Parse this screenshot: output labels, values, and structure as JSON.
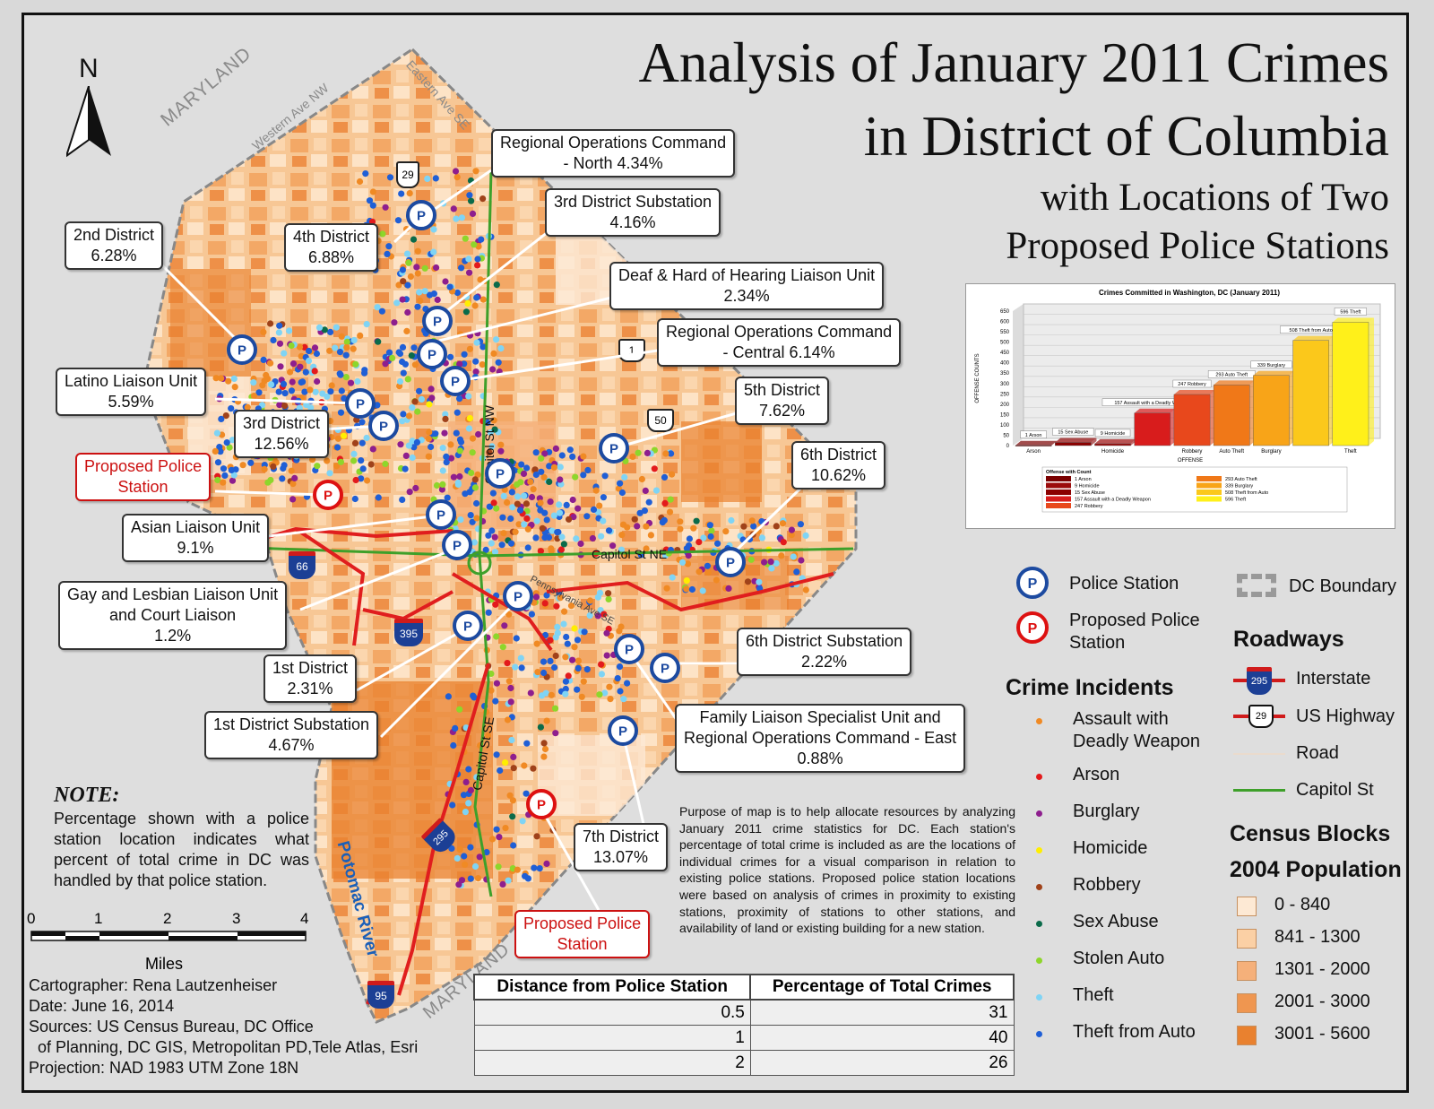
{
  "title": {
    "line1": "Analysis of January 2011 Crimes",
    "line2": "in District of Columbia",
    "line3": "with Locations of Two",
    "line4": "Proposed Police Stations"
  },
  "map_labels": {
    "north": "N",
    "maryland_nw": "MARYLAND",
    "maryland_se": "MARYLAND",
    "western_ave": "Western Ave NW",
    "eastern_ave": "Eastern Ave SE",
    "capitol_st_nw": "Capitol St NW",
    "capitol_st_ne": "Capitol St NE",
    "capitol_st_se": "Capitol St SE",
    "pennsylvania_ave": "Pennsylvania Ave SE",
    "potomac": "Potomac River",
    "shield_29": "29",
    "shield_1": "1",
    "shield_50": "50",
    "shield_66": "66",
    "shield_395": "395",
    "shield_295": "295",
    "shield_95": "95"
  },
  "callouts": [
    {
      "id": "roc-north",
      "line1": "Regional Operations Command",
      "line2": "- North 4.34%"
    },
    {
      "id": "d3-sub",
      "line1": "3rd District Substation",
      "line2": "4.16%"
    },
    {
      "id": "d2",
      "line1": "2nd District",
      "line2": "6.28%"
    },
    {
      "id": "d4",
      "line1": "4th District",
      "line2": "6.88%"
    },
    {
      "id": "deaf",
      "line1": "Deaf & Hard of Hearing Liaison Unit",
      "line2": "2.34%"
    },
    {
      "id": "roc-central",
      "line1": "Regional Operations Command",
      "line2": "- Central 6.14%"
    },
    {
      "id": "latino",
      "line1": "Latino Liaison Unit",
      "line2": "5.59%"
    },
    {
      "id": "d5",
      "line1": "5th District",
      "line2": "7.62%"
    },
    {
      "id": "d3",
      "line1": "3rd District",
      "line2": "12.56%"
    },
    {
      "id": "prop1",
      "line1": "Proposed Police",
      "line2": "Station"
    },
    {
      "id": "d6",
      "line1": "6th District",
      "line2": "10.62%"
    },
    {
      "id": "asian",
      "line1": "Asian Liaison Unit",
      "line2": "9.1%"
    },
    {
      "id": "glbt",
      "line1": "Gay and Lesbian Liaison Unit",
      "line2": "and Court Liaison",
      "line3": "1.2%"
    },
    {
      "id": "d6-sub",
      "line1": "6th District Substation",
      "line2": "2.22%"
    },
    {
      "id": "d1",
      "line1": "1st District",
      "line2": "2.31%"
    },
    {
      "id": "family",
      "line1": "Family Liaison Specialist Unit and",
      "line2": "Regional Operations Command - East",
      "line3": "0.88%"
    },
    {
      "id": "d1-sub",
      "line1": "1st District Substation",
      "line2": "4.67%"
    },
    {
      "id": "d7",
      "line1": "7th District",
      "line2": "13.07%"
    },
    {
      "id": "prop2",
      "line1": "Proposed Police",
      "line2": "Station"
    }
  ],
  "note": {
    "heading": "NOTE:",
    "text": "Percentage shown with a police station location indicates what percent of total crime in DC was handled by that police station."
  },
  "scale": {
    "ticks": [
      "0",
      "1",
      "2",
      "3",
      "4"
    ],
    "unit": "Miles"
  },
  "credits": {
    "cartographer": "Cartographer: Rena Lautzenheiser",
    "date": "Date: June 16, 2014",
    "sources1": "Sources: US Census Bureau, DC Office",
    "sources2": "of Planning, DC GIS, Metropolitan PD,Tele Atlas, Esri",
    "projection": "Projection: NAD 1983 UTM Zone 18N"
  },
  "purpose": "Purpose of map is to help allocate resources by analyzing January 2011 crime statistics for DC. Each station's percentage of total crime is included as are the locations of individual crimes for a visual comparison in relation to existing police stations. Proposed police station locations were based on analysis of crimes in proximity to existing stations, proximity of stations to other stations, and availability of land or existing building for a new station.",
  "distance_table": {
    "headers": [
      "Distance from Police Station",
      "Percentage of Total Crimes"
    ],
    "rows": [
      [
        "0.5",
        "31"
      ],
      [
        "1",
        "40"
      ],
      [
        "2",
        "26"
      ]
    ]
  },
  "legend": {
    "police_station": "Police Station",
    "proposed_line1": "Proposed Police",
    "proposed_line2": "Station",
    "dc_boundary": "DC Boundary",
    "roadways": "Roadways",
    "interstate": "Interstate",
    "us_highway": "US Highway",
    "road": "Road",
    "capitol_st": "Capitol St",
    "crime_heading": "Crime Incidents",
    "crimes": [
      {
        "label": "Assault with",
        "label2": "Deadly Weapon",
        "color": "#f08a24"
      },
      {
        "label": "Arson",
        "color": "#e31a1c"
      },
      {
        "label": "Burglary",
        "color": "#8e1e8e"
      },
      {
        "label": "Homicide",
        "color": "#ffee00"
      },
      {
        "label": "Robbery",
        "color": "#a0421a"
      },
      {
        "label": "Sex Abuse",
        "color": "#0b6b4a"
      },
      {
        "label": "Stolen Auto",
        "color": "#8ed62b"
      },
      {
        "label": "Theft",
        "color": "#7fd4f5"
      },
      {
        "label": "Theft from Auto",
        "color": "#1f5fd6"
      }
    ],
    "census_heading": "Census Blocks",
    "population_heading": "2004 Population",
    "population": [
      {
        "label": "0 - 840",
        "color": "#fde9d4"
      },
      {
        "label": "841 - 1300",
        "color": "#fbd0a5"
      },
      {
        "label": "1301 - 2000",
        "color": "#f5b07a"
      },
      {
        "label": "2001 - 3000",
        "color": "#ef9650"
      },
      {
        "label": "3001 - 5600",
        "color": "#e9812f"
      }
    ]
  },
  "chart_data": {
    "type": "bar",
    "title": "Crimes Committed in Washington, DC (January 2011)",
    "xlabel": "OFFENSE",
    "ylabel": "OFFENSE COUNTS",
    "ylim": [
      0,
      650
    ],
    "yticks": [
      "0",
      "50",
      "100",
      "150",
      "200",
      "250",
      "300",
      "350",
      "400",
      "450",
      "500",
      "550",
      "600",
      "650"
    ],
    "categories": [
      "Arson",
      "Sex Abuse",
      "Homicide",
      "Assault with a Deadly Weapon",
      "Robbery",
      "Auto Theft",
      "Burglary",
      "Theft from Auto",
      "Theft"
    ],
    "tick_labels": [
      "Arson",
      "",
      "Homicide",
      "",
      "Robbery",
      "Auto Theft",
      "Burglary",
      "",
      "Theft"
    ],
    "values": [
      1,
      15,
      9,
      157,
      247,
      293,
      339,
      508,
      596
    ],
    "bar_labels": [
      "1 Arson",
      "15 Sex Abuse",
      "9 Homicide",
      "157 Assault with a Deadly Weapon",
      "247 Robbery",
      "293 Auto Theft",
      "339 Burglary",
      "508 Theft from Auto",
      "596 Theft"
    ],
    "colors": [
      "#7a0000",
      "#8b0000",
      "#9b0a0a",
      "#d81c1c",
      "#e8481c",
      "#f07818",
      "#f8a418",
      "#fbc81b",
      "#fff01a"
    ],
    "legend_title": "Offense with Count",
    "legend": [
      "1 Arson",
      "9 Homicide",
      "15 Sex Abuse",
      "157 Assault with a Deadly Weapon",
      "247 Robbery",
      "293 Auto Theft",
      "339 Burglary",
      "508 Theft from Auto",
      "596 Theft"
    ]
  }
}
